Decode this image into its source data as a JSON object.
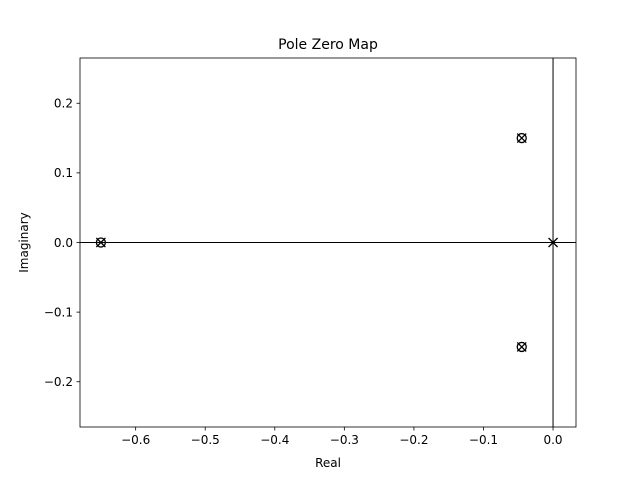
{
  "chart_data": {
    "type": "scatter",
    "title": "Pole Zero Map",
    "xlabel": "Real",
    "ylabel": "Imaginary",
    "xlim": [
      -0.68,
      0.033
    ],
    "ylim": [
      -0.265,
      0.265
    ],
    "xticks": [
      -0.6,
      -0.5,
      -0.4,
      -0.3,
      -0.2,
      -0.1,
      0.0
    ],
    "xtick_labels": [
      "−0.6",
      "−0.5",
      "−0.4",
      "−0.3",
      "−0.2",
      "−0.1",
      "0.0"
    ],
    "yticks": [
      -0.2,
      -0.1,
      0.0,
      0.1,
      0.2
    ],
    "ytick_labels": [
      "−0.2",
      "−0.1",
      "0.0",
      "0.1",
      "0.2"
    ],
    "grid": false,
    "reference_lines": {
      "x": 0,
      "y": 0
    },
    "series": [
      {
        "marker": "x",
        "color": "#000000",
        "points": [
          {
            "x": -0.045,
            "y": 0.15
          },
          {
            "x": -0.045,
            "y": -0.15
          },
          {
            "x": -0.65,
            "y": 0.0
          },
          {
            "x": 0.0,
            "y": 0.0
          }
        ]
      },
      {
        "marker": "o",
        "color": "#000000",
        "points": [
          {
            "x": -0.045,
            "y": 0.15
          },
          {
            "x": -0.045,
            "y": -0.15
          },
          {
            "x": -0.65,
            "y": 0.0
          }
        ]
      }
    ]
  }
}
